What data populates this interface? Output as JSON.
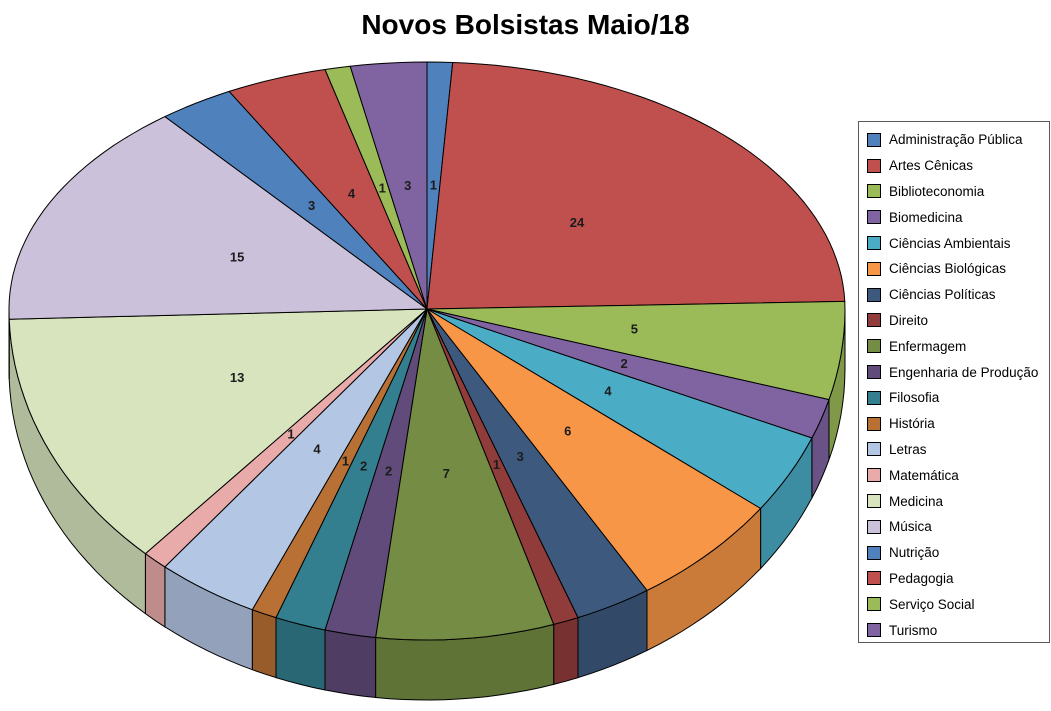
{
  "title": "Novos Bolsistas Maio/18",
  "chart_data": {
    "type": "pie",
    "projection": "3d",
    "title": "Novos Bolsistas Maio/18",
    "legend_position": "right",
    "data_labels": "value",
    "start_angle_deg": 0,
    "direction": "clockwise",
    "total": 102,
    "categories": [
      "Administração Pública",
      "Artes Cênicas",
      "Biblioteconomia",
      "Biomedicina",
      "Ciências Ambientais",
      "Ciências Biológicas",
      "Ciências Políticas",
      "Direito",
      "Enfermagem",
      "Engenharia de Produção",
      "Filosofia",
      "História",
      "Letras",
      "Matemática",
      "Medicina",
      "Música",
      "Nutrição",
      "Pedagogia",
      "Serviço Social",
      "Turismo"
    ],
    "values": [
      1,
      24,
      5,
      2,
      4,
      6,
      3,
      1,
      7,
      2,
      2,
      1,
      4,
      1,
      13,
      15,
      3,
      4,
      1,
      3
    ],
    "colors": [
      "#4F81BD",
      "#C0504D",
      "#9BBB59",
      "#8064A2",
      "#4BACC6",
      "#F79646",
      "#3D5A7E",
      "#903C3A",
      "#748C43",
      "#604B7A",
      "#337E8F",
      "#B97034",
      "#B3C6E3",
      "#E8ABAA",
      "#D7E4BD",
      "#CCC1DA",
      "#4F81BD",
      "#C0504D",
      "#9BBB59",
      "#8064A2"
    ],
    "label_color": "#1c1c1c",
    "outline_color": "#000000",
    "legend_border_color": "#595959",
    "background_color": "#ffffff"
  }
}
